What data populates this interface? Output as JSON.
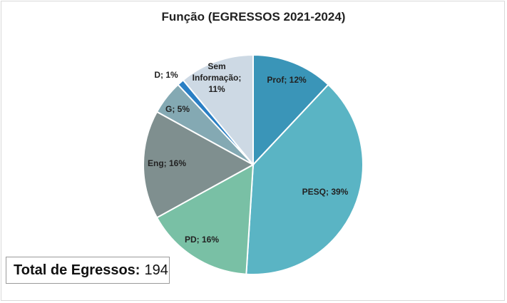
{
  "chart_data": {
    "type": "pie",
    "title": "Função (EGRESSOS 2021-2024)",
    "slices": [
      {
        "name": "Prof",
        "value": 12,
        "label": "Prof; 12%",
        "color": "#3a95b8"
      },
      {
        "name": "PESQ",
        "value": 39,
        "label": "PESQ; 39%",
        "color": "#5ab4c4"
      },
      {
        "name": "PD",
        "value": 16,
        "label": "PD; 16%",
        "color": "#79c0a5"
      },
      {
        "name": "Eng",
        "value": 16,
        "label": "Eng; 16%",
        "color": "#7f8f8f"
      },
      {
        "name": "G",
        "value": 5,
        "label": "G; 5%",
        "color": "#84a9b3"
      },
      {
        "name": "D",
        "value": 1,
        "label": "D; 1%",
        "color": "#2a7fc4"
      },
      {
        "name": "Sem Informação",
        "value": 11,
        "label_lines": [
          "Sem",
          "Informação;",
          "11%"
        ],
        "color": "#cdd9e4"
      }
    ]
  },
  "total": {
    "label": "Total de Egressos:",
    "value": "194"
  }
}
